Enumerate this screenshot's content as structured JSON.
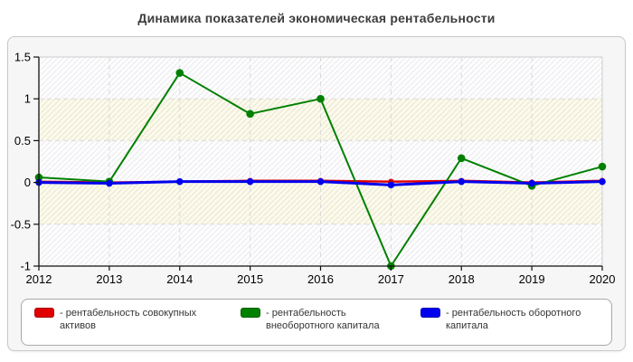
{
  "page": {
    "title": "Динамика показателей экономическая рентабельности"
  },
  "chart_data": {
    "type": "line",
    "title": "Динамика показателей экономическая рентабельности",
    "categories": [
      "2012",
      "2013",
      "2014",
      "2015",
      "2016",
      "2017",
      "2018",
      "2019",
      "2020"
    ],
    "series": [
      {
        "name": "рентабельность совокупных активов",
        "color": "#e00000",
        "values": [
          0.01,
          0.0,
          0.01,
          0.02,
          0.02,
          0.01,
          0.02,
          0.0,
          0.02
        ]
      },
      {
        "name": "рентабельность внеоборотного капитала",
        "color": "#008000",
        "values": [
          0.06,
          0.01,
          1.31,
          0.82,
          1.0,
          -1.0,
          0.29,
          -0.04,
          0.19
        ]
      },
      {
        "name": "рентабельность оборотного капитала",
        "color": "#0000ee",
        "values": [
          0.0,
          -0.01,
          0.01,
          0.01,
          0.01,
          -0.03,
          0.01,
          -0.01,
          0.01
        ]
      }
    ],
    "xlabel": "",
    "ylabel": "",
    "ylim": [
      -1,
      1.5
    ],
    "yticks": [
      "1.5",
      "1",
      "0.5",
      "0",
      "-0.5",
      "-1"
    ],
    "grid": true,
    "gridline_color": "#d9d9d9",
    "axis_color": "#111111",
    "legend_position": "bottom"
  },
  "legend": {
    "items": [
      {
        "label": "- рентабельность совокупных активов",
        "color": "#e00000"
      },
      {
        "label": "- рентабельность внеоборотного капитала",
        "color": "#008000"
      },
      {
        "label": "- рентабельность оборотного капитала",
        "color": "#0000ee"
      }
    ]
  }
}
